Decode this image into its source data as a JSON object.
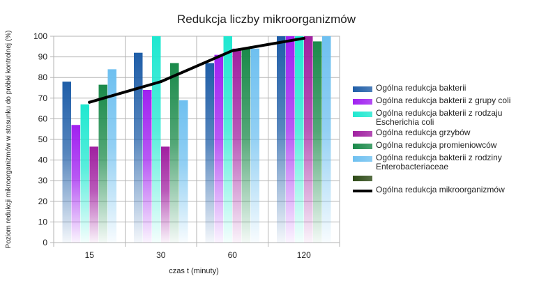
{
  "chart_data": {
    "type": "bar",
    "title": "Redukcja liczby mikroorganizmów",
    "xlabel": "czas t (minuty)",
    "ylabel": "Poziom redukcji mikroorganizmów w stosunku do próbki kontrolnej (%)",
    "ylim": [
      0,
      100
    ],
    "yticks": [
      0,
      10,
      20,
      30,
      40,
      50,
      60,
      70,
      80,
      90,
      100
    ],
    "categories": [
      "15",
      "30",
      "60",
      "120"
    ],
    "grid": true,
    "legend_position": "right",
    "series": [
      {
        "name": "Ogólna redukcja bakterii",
        "color": "#1f5ea8",
        "values": [
          78,
          92,
          87,
          100
        ]
      },
      {
        "name": "Ogólna redukcja bakterii z grupy coli",
        "color": "#a020f0",
        "values": [
          57,
          74,
          91,
          100
        ]
      },
      {
        "name": "Ogólna redukcja bakterii z rodzaju Escherichia coli",
        "color": "#1fe8d0",
        "values": [
          67,
          100,
          100,
          100
        ]
      },
      {
        "name": "Ogólna redukcja grzybów",
        "color": "#a020a0",
        "values": [
          46.5,
          46.5,
          94,
          100
        ]
      },
      {
        "name": "Ogólna redukcja promieniowców",
        "color": "#1a8a4a",
        "values": [
          76.5,
          87,
          94,
          97.5
        ]
      },
      {
        "name": "Ogólna redukcja bakterii z rodziny Enterobacteriaceae",
        "color": "#6ec0f0",
        "values": [
          84,
          69,
          94,
          100
        ]
      }
    ],
    "legend_extra": [
      {
        "name": "",
        "color": "#2d4a16",
        "kind": "box"
      },
      {
        "name": "Ogólna redukcja mikroorganizmów",
        "color": "#000000",
        "kind": "line"
      }
    ],
    "line_series": {
      "name": "Ogólna redukcja mikroorganizmów",
      "color": "#000000",
      "values": [
        68,
        78,
        93,
        99
      ]
    }
  }
}
